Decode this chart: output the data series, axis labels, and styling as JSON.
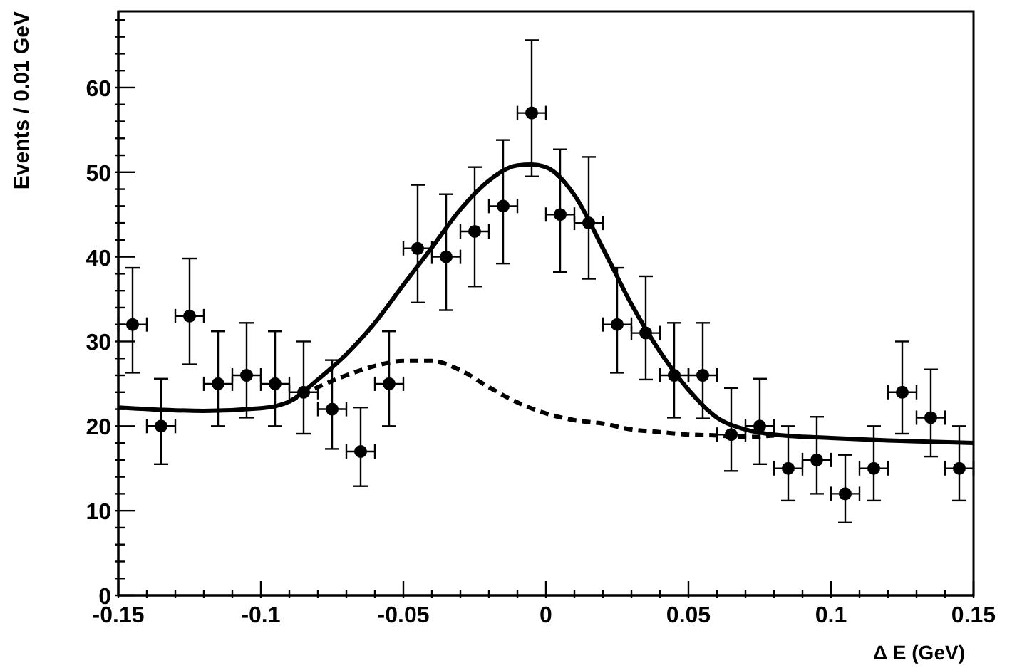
{
  "chart_data": {
    "type": "scatter",
    "xlabel": "Δ E (GeV)",
    "ylabel": "Events / 0.01 GeV",
    "xlim": [
      -0.15,
      0.15
    ],
    "ylim": [
      0,
      69
    ],
    "xticks": [
      -0.15,
      {
        "value": -0.14,
        "label": null
      },
      {
        "value": -0.13,
        "label": null
      },
      {
        "value": -0.12,
        "label": null
      },
      {
        "value": -0.11,
        "label": null
      },
      -0.1,
      {
        "value": -0.09,
        "label": null
      },
      {
        "value": -0.08,
        "label": null
      },
      {
        "value": -0.07,
        "label": null
      },
      {
        "value": -0.06,
        "label": null
      },
      -0.05,
      {
        "value": -0.04,
        "label": null
      },
      {
        "value": -0.03,
        "label": null
      },
      {
        "value": -0.02,
        "label": null
      },
      {
        "value": -0.01,
        "label": null
      },
      0,
      {
        "value": 0.01,
        "label": null
      },
      {
        "value": 0.02,
        "label": null
      },
      {
        "value": 0.03,
        "label": null
      },
      {
        "value": 0.04,
        "label": null
      },
      0.05,
      {
        "value": 0.06,
        "label": null
      },
      {
        "value": 0.07,
        "label": null
      },
      {
        "value": 0.08,
        "label": null
      },
      {
        "value": 0.09,
        "label": null
      },
      0.1,
      {
        "value": 0.11,
        "label": null
      },
      {
        "value": 0.12,
        "label": null
      },
      {
        "value": 0.13,
        "label": null
      },
      {
        "value": 0.14,
        "label": null
      },
      0.15
    ],
    "yticks": [
      0,
      {
        "value": 2,
        "label": null
      },
      {
        "value": 4,
        "label": null
      },
      {
        "value": 6,
        "label": null
      },
      {
        "value": 8,
        "label": null
      },
      10,
      {
        "value": 12,
        "label": null
      },
      {
        "value": 14,
        "label": null
      },
      {
        "value": 16,
        "label": null
      },
      {
        "value": 18,
        "label": null
      },
      20,
      {
        "value": 22,
        "label": null
      },
      {
        "value": 24,
        "label": null
      },
      {
        "value": 26,
        "label": null
      },
      {
        "value": 28,
        "label": null
      },
      30,
      {
        "value": 32,
        "label": null
      },
      {
        "value": 34,
        "label": null
      },
      {
        "value": 36,
        "label": null
      },
      {
        "value": 38,
        "label": null
      },
      40,
      {
        "value": 42,
        "label": null
      },
      {
        "value": 44,
        "label": null
      },
      {
        "value": 46,
        "label": null
      },
      {
        "value": 48,
        "label": null
      },
      50,
      {
        "value": 52,
        "label": null
      },
      {
        "value": 54,
        "label": null
      },
      {
        "value": 56,
        "label": null
      },
      {
        "value": 58,
        "label": null
      },
      60,
      {
        "value": 62,
        "label": null
      },
      {
        "value": 64,
        "label": null
      },
      {
        "value": 66,
        "label": null
      },
      {
        "value": 68,
        "label": null
      }
    ],
    "grid": false,
    "legend": false,
    "series": [
      {
        "type": "scatter",
        "marker": "circle",
        "color": "#000000",
        "x": [
          -0.145,
          -0.135,
          -0.125,
          -0.115,
          -0.105,
          -0.095,
          -0.085,
          -0.075,
          -0.065,
          -0.055,
          -0.045,
          -0.035,
          -0.025,
          -0.015,
          -0.005,
          0.005,
          0.015,
          0.025,
          0.035,
          0.045,
          0.055,
          0.065,
          0.075,
          0.085,
          0.095,
          0.105,
          0.115,
          0.125,
          0.135,
          0.145
        ],
        "values": [
          32,
          20,
          33,
          25,
          26,
          25,
          24,
          22,
          17,
          25,
          41,
          40,
          43,
          46,
          57,
          45,
          44,
          32,
          31,
          26,
          26,
          19,
          20,
          15,
          16,
          12,
          15,
          24,
          21,
          15
        ],
        "errors": [
          [
            26.3,
            38.7
          ],
          [
            15.5,
            25.6
          ],
          [
            27.3,
            39.8
          ],
          [
            20,
            31.2
          ],
          [
            21,
            32.2
          ],
          [
            20,
            31.2
          ],
          [
            19.1,
            30
          ],
          [
            17.3,
            27.8
          ],
          [
            12.9,
            22.2
          ],
          [
            20,
            31.2
          ],
          [
            34.6,
            48.5
          ],
          [
            33.7,
            47.4
          ],
          [
            36.5,
            50.6
          ],
          [
            39.2,
            53.8
          ],
          [
            49.5,
            65.6
          ],
          [
            38.2,
            52.7
          ],
          [
            37.4,
            51.8
          ],
          [
            26.3,
            38.7
          ],
          [
            25.5,
            37.7
          ],
          [
            21,
            32.2
          ],
          [
            20.9,
            32.2
          ],
          [
            14.7,
            24.5
          ],
          [
            15.5,
            25.6
          ],
          [
            11.2,
            20
          ],
          [
            12,
            21.1
          ],
          [
            8.6,
            16.6
          ],
          [
            11.2,
            20
          ],
          [
            19.1,
            30
          ],
          [
            16.4,
            26.7
          ],
          [
            11.2,
            20
          ]
        ],
        "xerrors": [
          0.005,
          0.005,
          0.005,
          0.005,
          0.005,
          0.005,
          0.005,
          0.005,
          0.005,
          0.005,
          0.005,
          0.005,
          0.005,
          0.005,
          0.005,
          0.005,
          0.005,
          0.005,
          0.005,
          0.005,
          0.005,
          0.005,
          0.005,
          0.005,
          0.005,
          0.005,
          0.005,
          0.005,
          0.005,
          0.005
        ]
      },
      {
        "type": "line",
        "marker": "none",
        "line_style": "solid",
        "color": "#000000",
        "x": [
          -0.15,
          -0.12,
          -0.1,
          -0.09,
          -0.08,
          -0.07,
          -0.06,
          -0.05,
          -0.04,
          -0.03,
          -0.02,
          -0.01,
          -0.005,
          0,
          0.01,
          0.02,
          0.03,
          0.04,
          0.05,
          0.06,
          0.07,
          0.08,
          0.1,
          0.12,
          0.15
        ],
        "values": [
          22.2,
          21.8,
          22.1,
          22.9,
          25.5,
          28.5,
          32.2,
          36.7,
          41.1,
          45.6,
          49,
          50.8,
          50.9,
          50.6,
          47.3,
          41,
          34.4,
          28.8,
          24.3,
          21,
          19.6,
          19,
          18.6,
          18.3,
          18
        ]
      },
      {
        "type": "line",
        "marker": "none",
        "line_style": "dashed",
        "color": "#000000",
        "x": [
          -0.09,
          -0.08,
          -0.07,
          -0.06,
          -0.05,
          -0.04,
          -0.03,
          -0.02,
          -0.01,
          0,
          0.01,
          0.02,
          0.03,
          0.04,
          0.05,
          0.06,
          0.07,
          0.08
        ],
        "values": [
          22.9,
          24.6,
          26,
          27.1,
          27.7,
          27.7,
          26.6,
          24.6,
          22.8,
          21.5,
          20.7,
          20.3,
          19.6,
          19.3,
          19,
          18.9,
          18.7,
          18.9
        ]
      }
    ]
  }
}
